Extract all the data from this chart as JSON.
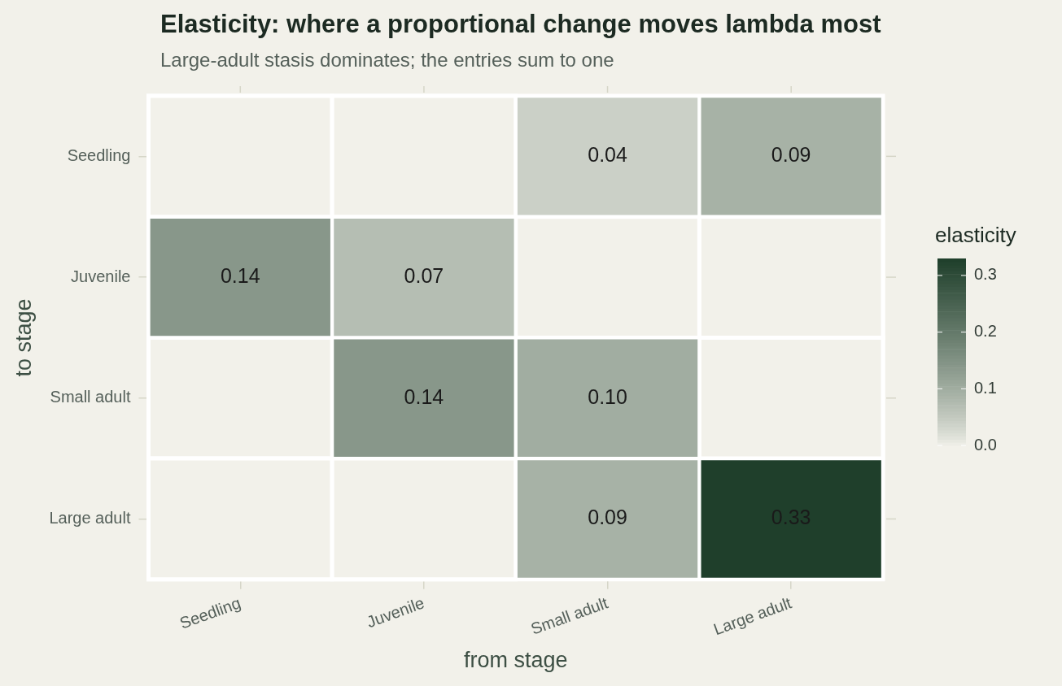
{
  "chart_data": {
    "type": "heatmap",
    "title": "Elasticity: where a proportional change moves lambda most",
    "subtitle": "Large-adult stasis dominates; the entries sum to one",
    "xlabel": "from stage",
    "ylabel": "to stage",
    "legend_title": "elasticity",
    "categories": [
      "Seedling",
      "Juvenile",
      "Small adult",
      "Large adult"
    ],
    "y_categories": [
      "Seedling",
      "Juvenile",
      "Small adult",
      "Large adult"
    ],
    "cells": [
      [
        null,
        null,
        0.04,
        0.09
      ],
      [
        0.14,
        0.07,
        null,
        null
      ],
      [
        null,
        0.14,
        0.1,
        null
      ],
      [
        null,
        null,
        0.09,
        0.33
      ]
    ],
    "cell_labels": [
      [
        null,
        null,
        "0.04",
        "0.09"
      ],
      [
        "0.14",
        "0.07",
        null,
        null
      ],
      [
        null,
        "0.14",
        "0.10",
        null
      ],
      [
        null,
        null,
        "0.09",
        "0.33"
      ]
    ],
    "clim": [
      0,
      0.33
    ],
    "cticks": [
      {
        "value": 0,
        "label": "0.0"
      },
      {
        "value": 0.1,
        "label": "0.1"
      },
      {
        "value": 0.2,
        "label": "0.2"
      },
      {
        "value": 0.3,
        "label": "0.3"
      }
    ]
  }
}
